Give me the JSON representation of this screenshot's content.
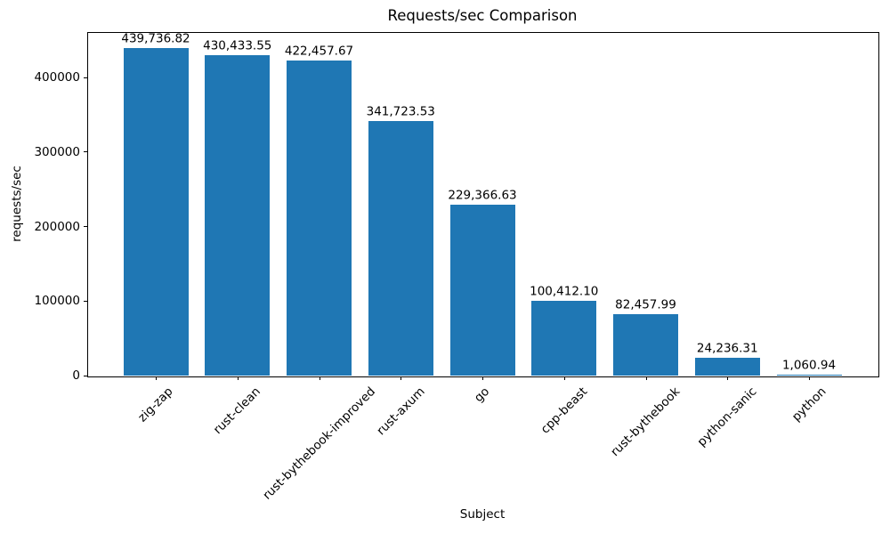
{
  "chart_data": {
    "type": "bar",
    "title": "Requests/sec Comparison",
    "xlabel": "Subject",
    "ylabel": "requests/sec",
    "categories": [
      "zig-zap",
      "rust-clean",
      "rust-bythebook-improved",
      "rust-axum",
      "go",
      "cpp-beast",
      "rust-bythebook",
      "python-sanic",
      "python"
    ],
    "values": [
      439736.82,
      430433.55,
      422457.67,
      341723.53,
      229366.63,
      100412.1,
      82457.99,
      24236.31,
      1060.94
    ],
    "value_labels": [
      "439,736.82",
      "430,433.55",
      "422,457.67",
      "341,723.53",
      "229,366.63",
      "100,412.10",
      "82,457.99",
      "24,236.31",
      "1,060.94"
    ],
    "yticks": [
      0,
      100000,
      200000,
      300000,
      400000
    ],
    "ytick_labels": [
      "0",
      "100000",
      "200000",
      "300000",
      "400000"
    ],
    "ylim": [
      0,
      461000
    ],
    "bar_color": "#1f77b4",
    "text_color": "#000000",
    "grid": false,
    "legend": null,
    "x_tick_rotation_deg": 45
  }
}
